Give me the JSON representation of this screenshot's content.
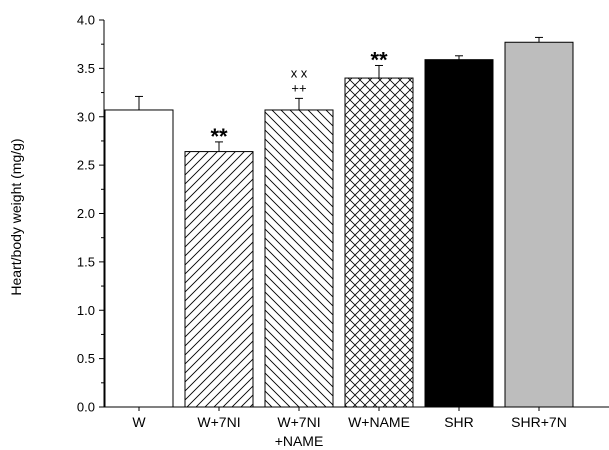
{
  "chart_data": {
    "type": "bar",
    "title": "",
    "xlabel": "",
    "ylabel": "Heart/body weight (mg/g)",
    "ylim": [
      0,
      4.0
    ],
    "yticks": [
      "0.0",
      "0.5",
      "1.0",
      "1.5",
      "2.0",
      "2.5",
      "3.0",
      "3.5",
      "4.0"
    ],
    "grid": false,
    "legend": "none",
    "categories": [
      {
        "label_lines": [
          "W"
        ]
      },
      {
        "label_lines": [
          "W+7NI"
        ]
      },
      {
        "label_lines": [
          "W+7NI",
          "+NAME"
        ]
      },
      {
        "label_lines": [
          "W+NAME"
        ]
      },
      {
        "label_lines": [
          "SHR"
        ]
      },
      {
        "label_lines": [
          "SHR+7N"
        ]
      }
    ],
    "values": [
      3.07,
      2.64,
      3.07,
      3.4,
      3.59,
      3.77
    ],
    "errors": [
      0.14,
      0.1,
      0.12,
      0.13,
      0.04,
      0.05
    ],
    "fills": [
      "white",
      "hatch-forward",
      "hatch-back",
      "crosshatch",
      "black",
      "#bdbdbd"
    ],
    "annotations": [
      {
        "category_index": 1,
        "lines": [
          "**"
        ]
      },
      {
        "category_index": 2,
        "lines": [
          "x x",
          "++"
        ]
      },
      {
        "category_index": 3,
        "lines": [
          "**"
        ]
      }
    ]
  }
}
